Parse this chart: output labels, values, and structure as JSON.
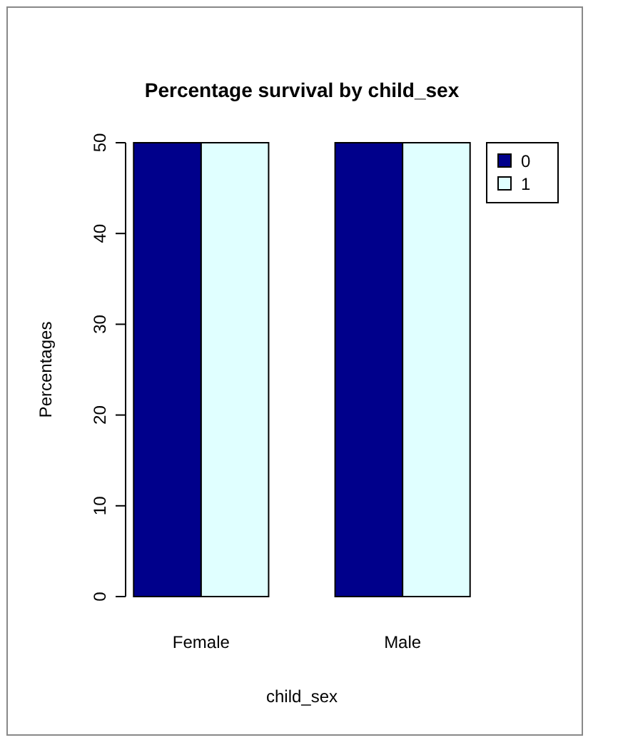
{
  "chart_data": {
    "type": "bar",
    "title": "Percentage survival by child_sex",
    "xlabel": "child_sex",
    "ylabel": "Percentages",
    "categories": [
      "Female",
      "Male"
    ],
    "series": [
      {
        "name": "0",
        "color": "#00008b",
        "values": [
          50,
          50
        ]
      },
      {
        "name": "1",
        "color": "#e0ffff",
        "values": [
          50,
          50
        ]
      }
    ],
    "ylim": [
      0,
      50
    ],
    "yticks": [
      0,
      10,
      20,
      30,
      40,
      50
    ],
    "grid": false,
    "legend": "top right"
  }
}
